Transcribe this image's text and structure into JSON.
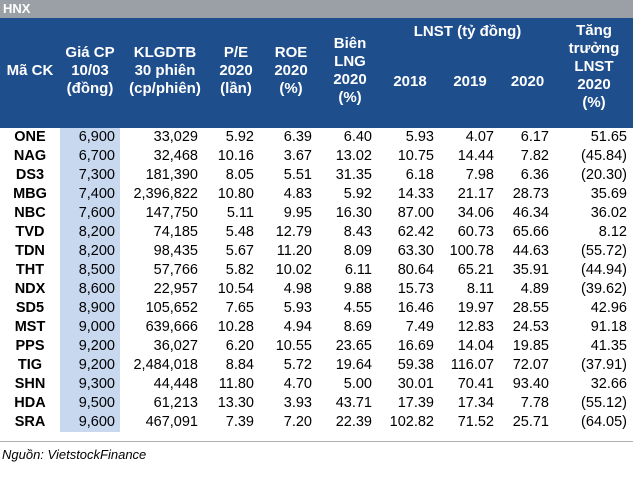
{
  "section_label": "HNX",
  "headers": {
    "ticker": "Mã CK",
    "price": "Giá CP\n10/03\n(đồng)",
    "volume": "KLGDTB\n30 phiên\n(cp/phiên)",
    "pe": "P/E\n2020\n(lần)",
    "roe": "ROE\n2020\n(%)",
    "margin": "Biên\nLNG\n2020\n(%)",
    "lnst_group": "LNST (tỷ đồng)",
    "y2018": "2018",
    "y2019": "2019",
    "y2020": "2020",
    "growth": "Tăng\ntrưởng\nLNST\n2020\n(%)"
  },
  "rows": [
    {
      "ticker": "ONE",
      "price": "6,900",
      "volume": "33,029",
      "pe": "5.92",
      "roe": "6.39",
      "margin": "6.40",
      "y2018": "5.93",
      "y2019": "4.07",
      "y2020": "6.17",
      "growth": "51.65",
      "negative": false
    },
    {
      "ticker": "NAG",
      "price": "6,700",
      "volume": "32,468",
      "pe": "10.16",
      "roe": "3.67",
      "margin": "13.02",
      "y2018": "10.75",
      "y2019": "14.44",
      "y2020": "7.82",
      "growth": "(45.84)",
      "negative": true
    },
    {
      "ticker": "DS3",
      "price": "7,300",
      "volume": "181,390",
      "pe": "8.05",
      "roe": "5.51",
      "margin": "31.35",
      "y2018": "6.18",
      "y2019": "7.98",
      "y2020": "6.36",
      "growth": "(20.30)",
      "negative": true
    },
    {
      "ticker": "MBG",
      "price": "7,400",
      "volume": "2,396,822",
      "pe": "10.80",
      "roe": "4.83",
      "margin": "5.92",
      "y2018": "14.33",
      "y2019": "21.17",
      "y2020": "28.73",
      "growth": "35.69",
      "negative": false
    },
    {
      "ticker": "NBC",
      "price": "7,600",
      "volume": "147,750",
      "pe": "5.11",
      "roe": "9.95",
      "margin": "16.30",
      "y2018": "87.00",
      "y2019": "34.06",
      "y2020": "46.34",
      "growth": "36.02",
      "negative": false
    },
    {
      "ticker": "TVD",
      "price": "8,200",
      "volume": "74,185",
      "pe": "5.48",
      "roe": "12.79",
      "margin": "8.43",
      "y2018": "62.42",
      "y2019": "60.73",
      "y2020": "65.66",
      "growth": "8.12",
      "negative": false
    },
    {
      "ticker": "TDN",
      "price": "8,200",
      "volume": "98,435",
      "pe": "5.67",
      "roe": "11.20",
      "margin": "8.09",
      "y2018": "63.30",
      "y2019": "100.78",
      "y2020": "44.63",
      "growth": "(55.72)",
      "negative": true
    },
    {
      "ticker": "THT",
      "price": "8,500",
      "volume": "57,766",
      "pe": "5.82",
      "roe": "10.02",
      "margin": "6.11",
      "y2018": "80.64",
      "y2019": "65.21",
      "y2020": "35.91",
      "growth": "(44.94)",
      "negative": true
    },
    {
      "ticker": "NDX",
      "price": "8,600",
      "volume": "22,957",
      "pe": "10.54",
      "roe": "4.98",
      "margin": "9.88",
      "y2018": "15.73",
      "y2019": "8.11",
      "y2020": "4.89",
      "growth": "(39.62)",
      "negative": true
    },
    {
      "ticker": "SD5",
      "price": "8,900",
      "volume": "105,652",
      "pe": "7.65",
      "roe": "5.93",
      "margin": "4.55",
      "y2018": "16.46",
      "y2019": "19.97",
      "y2020": "28.55",
      "growth": "42.96",
      "negative": false
    },
    {
      "ticker": "MST",
      "price": "9,000",
      "volume": "639,666",
      "pe": "10.28",
      "roe": "4.94",
      "margin": "8.69",
      "y2018": "7.49",
      "y2019": "12.83",
      "y2020": "24.53",
      "growth": "91.18",
      "negative": false
    },
    {
      "ticker": "PPS",
      "price": "9,200",
      "volume": "36,027",
      "pe": "6.20",
      "roe": "10.55",
      "margin": "23.65",
      "y2018": "16.69",
      "y2019": "14.04",
      "y2020": "19.85",
      "growth": "41.35",
      "negative": false
    },
    {
      "ticker": "TIG",
      "price": "9,200",
      "volume": "2,484,018",
      "pe": "8.84",
      "roe": "5.72",
      "margin": "19.64",
      "y2018": "59.38",
      "y2019": "116.07",
      "y2020": "72.07",
      "growth": "(37.91)",
      "negative": true
    },
    {
      "ticker": "SHN",
      "price": "9,300",
      "volume": "44,448",
      "pe": "11.80",
      "roe": "4.70",
      "margin": "5.00",
      "y2018": "30.01",
      "y2019": "70.41",
      "y2020": "93.40",
      "growth": "32.66",
      "negative": false
    },
    {
      "ticker": "HDA",
      "price": "9,500",
      "volume": "61,213",
      "pe": "13.30",
      "roe": "3.93",
      "margin": "43.71",
      "y2018": "17.39",
      "y2019": "17.34",
      "y2020": "7.78",
      "growth": "(55.12)",
      "negative": true
    },
    {
      "ticker": "SRA",
      "price": "9,600",
      "volume": "467,091",
      "pe": "7.39",
      "roe": "7.20",
      "margin": "22.39",
      "y2018": "102.82",
      "y2019": "71.52",
      "y2020": "25.71",
      "growth": "(64.05)",
      "negative": true
    }
  ],
  "source": "Nguồn: VietstockFinance",
  "colors": {
    "header_bg": "#1f4e8c",
    "price_col_bg": "#c7d8ef",
    "negative": "#d62828",
    "topbar_bg": "#9aa0a6"
  }
}
